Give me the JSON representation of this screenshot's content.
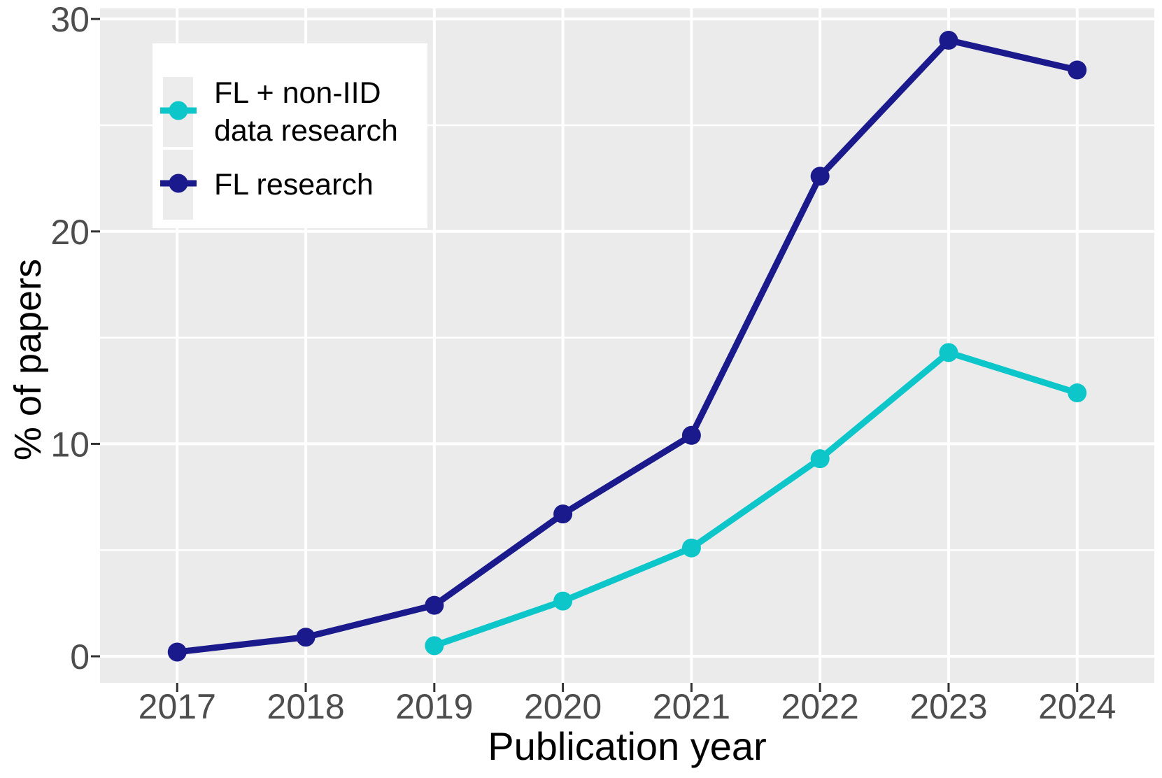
{
  "chart_data": {
    "type": "line",
    "title": "",
    "xlabel": "Publication year",
    "ylabel": "% of papers",
    "x": [
      2017,
      2018,
      2019,
      2020,
      2021,
      2022,
      2023,
      2024
    ],
    "x_ticks": [
      "2017",
      "2018",
      "2019",
      "2020",
      "2021",
      "2022",
      "2023",
      "2024"
    ],
    "y_ticks": [
      0,
      10,
      20,
      30
    ],
    "y_minor_ticks": [
      5,
      15,
      25
    ],
    "ylim": [
      -1.25,
      30.5
    ],
    "xlim": [
      2016.4,
      2024.6
    ],
    "grid": "horizontal major+minor, vertical major only",
    "legend_position": "inside top-left",
    "panel_bg": "#EBEBEB",
    "grid_color": "#FFFFFF",
    "tick_color": "#333333",
    "tick_label_color": "#4D4D4D",
    "axis_title_color": "#000000",
    "series": [
      {
        "name": "FL + non-IID data research",
        "label_lines": [
          "FL + non-IID",
          "data research"
        ],
        "color": "#0DC6C9",
        "x": [
          2019,
          2020,
          2021,
          2022,
          2023,
          2024
        ],
        "values": [
          0.5,
          2.6,
          5.1,
          9.3,
          14.3,
          12.4
        ]
      },
      {
        "name": "FL research",
        "label_lines": [
          "FL research"
        ],
        "color": "#1A1A8C",
        "x": [
          2017,
          2018,
          2019,
          2020,
          2021,
          2022,
          2023,
          2024
        ],
        "values": [
          0.2,
          0.9,
          2.4,
          6.7,
          10.4,
          22.6,
          29.0,
          27.6
        ]
      }
    ]
  }
}
